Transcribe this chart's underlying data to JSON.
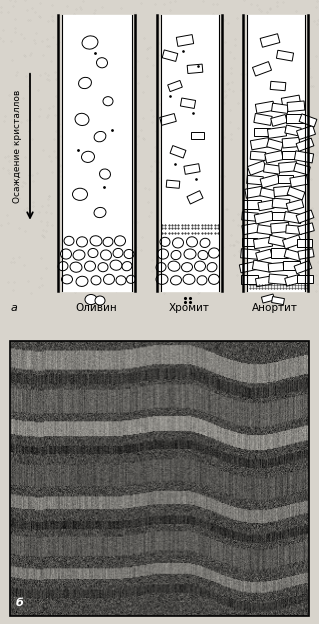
{
  "bg_color": "#d8d4cc",
  "top_panel_bg": "#d8d4cc",
  "label_a": "a",
  "label_b": "б",
  "arrow_label": "Осаждение кристаллов",
  "mineral_labels": [
    "Оливин",
    "Хромит",
    "Анортит"
  ],
  "font_size_labels": 7.5,
  "font_size_arrow": 6.5,
  "font_size_ab": 8
}
